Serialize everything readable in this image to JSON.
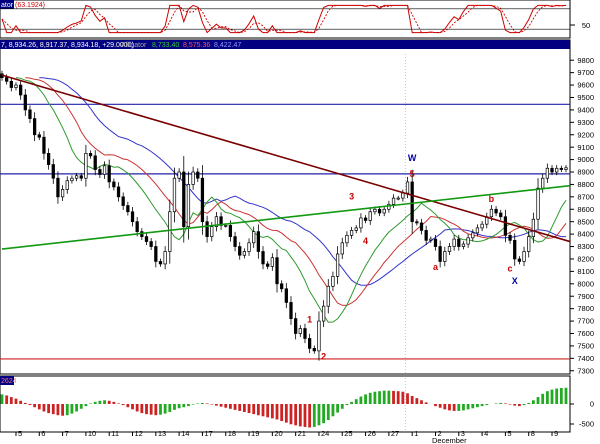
{
  "window": {
    "stoch_title_prefix": "ator",
    "stoch_value": "(63.1924)",
    "price_info": "7, 8,934.26, 8,917.37, 8,934.18, +29.0000)",
    "alligator_label": "Alligator",
    "alligator_jaw": "8,733.40",
    "alligator_teeth": "8,575.36",
    "alligator_lips": "8,422.47",
    "ao_value": "2624",
    "month_label": "December"
  },
  "colors": {
    "background": "#ffffff",
    "pane_border": "#000000",
    "header_bg": "#000080",
    "stoch_main": "#cc0000",
    "jaw": "#3333cc",
    "teeth": "#cc3333",
    "lips": "#2e9a2e",
    "resistance": "#2222aa",
    "support": "#cc2222",
    "trend_down": "#7a0000",
    "trend_up": "#119911",
    "wave_red": "#cc0000",
    "wave_blue": "#0000aa",
    "ao_up": "#22aa22",
    "ao_down": "#cc2222"
  },
  "chart_data": {
    "type": "candlestick",
    "x_tick_labels": [
      "5",
      "6",
      "7",
      "10",
      "11",
      "12",
      "13",
      "14",
      "17",
      "18",
      "19",
      "20",
      "21",
      "24",
      "25",
      "26",
      "27",
      "1",
      "2",
      "3",
      "4",
      "5",
      "8",
      "9"
    ],
    "x_tick_positions": [
      3,
      8,
      13,
      18,
      23,
      28,
      33,
      38,
      43,
      48,
      53,
      58,
      63,
      68,
      73,
      78,
      83,
      88,
      93,
      98,
      103,
      108,
      113,
      118
    ],
    "n_bars": 122,
    "price_axis": {
      "ylim": [
        7290,
        9850
      ],
      "ticks": [
        9800,
        9700,
        9600,
        9500,
        9400,
        9300,
        9200,
        9100,
        9000,
        8900,
        8800,
        8700,
        8600,
        8500,
        8400,
        8300,
        8200,
        8100,
        8000,
        7900,
        7800,
        7700,
        7600,
        7500,
        7400,
        7300
      ]
    },
    "stochastic": {
      "ylim": [
        0,
        100
      ],
      "ticks": [
        50
      ],
      "levels": [
        80,
        20
      ],
      "last_value": 63.1924
    },
    "awesome_oscillator": {
      "ticks": [
        0,
        -500
      ]
    },
    "horizontal_lines": {
      "resistance_high": 9445,
      "resistance_mid": 8885,
      "support_low": 7395
    },
    "trendlines": [
      {
        "name": "down",
        "x": [
          0,
          122
        ],
        "y": [
          9680,
          8340
        ]
      },
      {
        "name": "up",
        "x": [
          0,
          122
        ],
        "y": [
          8280,
          8790
        ]
      }
    ],
    "wave_labels": [
      {
        "label": "1",
        "x": 66,
        "y": 7690,
        "color": "red"
      },
      {
        "label": "2",
        "x": 69,
        "y": 7390,
        "color": "red"
      },
      {
        "label": "3",
        "x": 75,
        "y": 8680,
        "color": "red"
      },
      {
        "label": "4",
        "x": 78,
        "y": 8320,
        "color": "red"
      },
      {
        "label": "5",
        "x": 88,
        "y": 8860,
        "color": "red"
      },
      {
        "label": "W",
        "x": 88,
        "y": 8990,
        "color": "blue"
      },
      {
        "label": "a",
        "x": 93,
        "y": 8110,
        "color": "red"
      },
      {
        "label": "b",
        "x": 105,
        "y": 8660,
        "color": "red"
      },
      {
        "label": "c",
        "x": 109,
        "y": 8100,
        "color": "red"
      },
      {
        "label": "X",
        "x": 110,
        "y": 8000,
        "color": "blue"
      }
    ],
    "closes": [
      9660,
      9630,
      9580,
      9600,
      9520,
      9400,
      9330,
      9200,
      9180,
      9050,
      8960,
      8850,
      8700,
      8760,
      8830,
      8850,
      8870,
      8850,
      9050,
      9030,
      8920,
      8880,
      8950,
      8820,
      8780,
      8700,
      8630,
      8580,
      8500,
      8420,
      8380,
      8340,
      8300,
      8180,
      8160,
      8260,
      8580,
      8850,
      8900,
      8460,
      8800,
      8900,
      8850,
      8500,
      8380,
      8460,
      8540,
      8470,
      8470,
      8380,
      8300,
      8230,
      8260,
      8330,
      8420,
      8260,
      8160,
      8140,
      8210,
      8000,
      7960,
      7850,
      7720,
      7600,
      7640,
      7560,
      7480,
      7460,
      7700,
      7820,
      7980,
      8060,
      8240,
      8330,
      8390,
      8430,
      8450,
      8530,
      8510,
      8580,
      8600,
      8570,
      8600,
      8640,
      8690,
      8690,
      8730,
      8820,
      8500,
      8490,
      8430,
      8350,
      8360,
      8300,
      8180,
      8260,
      8300,
      8360,
      8300,
      8320,
      8370,
      8410,
      8450,
      8480,
      8540,
      8600,
      8570,
      8540,
      8390,
      8350,
      8200,
      8180,
      8260,
      8380,
      8520,
      8770,
      8850,
      8930,
      8900,
      8930,
      8920,
      8934
    ],
    "ao_values": [
      180,
      160,
      130,
      100,
      60,
      20,
      -20,
      -60,
      -100,
      -140,
      -170,
      -190,
      -210,
      -220,
      -210,
      -180,
      -140,
      -90,
      -40,
      10,
      40,
      60,
      70,
      60,
      40,
      10,
      -20,
      -60,
      -100,
      -140,
      -170,
      -190,
      -200,
      -210,
      -200,
      -180,
      -150,
      -110,
      -80,
      -60,
      -40,
      -10,
      10,
      20,
      10,
      -10,
      -30,
      -50,
      -70,
      -90,
      -110,
      -130,
      -150,
      -170,
      -190,
      -210,
      -230,
      -250,
      -270,
      -290,
      -320,
      -350,
      -380,
      -400,
      -420,
      -430,
      -440,
      -430,
      -400,
      -360,
      -300,
      -230,
      -160,
      -90,
      -20,
      40,
      90,
      140,
      180,
      210,
      230,
      240,
      250,
      250,
      245,
      240,
      230,
      200,
      150,
      110,
      70,
      30,
      0,
      -40,
      -70,
      -100,
      -120,
      -130,
      -130,
      -120,
      -100,
      -80,
      -60,
      -40,
      -20,
      0,
      10,
      20,
      10,
      -10,
      -30,
      -40,
      -20,
      20,
      70,
      130,
      190,
      240,
      270,
      290,
      300,
      305
    ]
  }
}
